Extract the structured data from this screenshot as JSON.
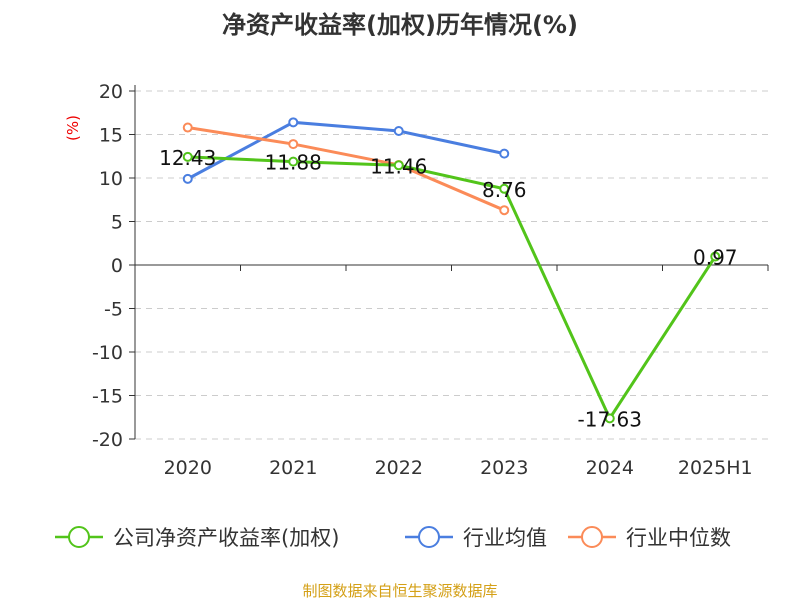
{
  "chart_data": {
    "type": "line",
    "title": "净资产收益率(加权)历年情况(%)",
    "ylabel": "(%)",
    "categories": [
      "2020",
      "2021",
      "2022",
      "2023",
      "2024",
      "2025H1"
    ],
    "ylim": [
      -20,
      20
    ],
    "yticks": [
      "20",
      "15",
      "10",
      "5",
      "0",
      "-5",
      "-10",
      "-15",
      "-20"
    ],
    "grid": true,
    "legend_position": "bottom",
    "series": [
      {
        "name": "公司净资产收益率(加权)",
        "color": "#52c41a",
        "values": [
          12.43,
          11.88,
          11.46,
          8.76,
          -17.63,
          0.97
        ],
        "labels": [
          "12.43",
          "11.88",
          "11.46",
          "8.76",
          "-17.63",
          "0.97"
        ]
      },
      {
        "name": "行业均值",
        "color": "#4a7ee0",
        "values": [
          9.9,
          16.4,
          15.4,
          12.8,
          null,
          null
        ]
      },
      {
        "name": "行业中位数",
        "color": "#fb8b58",
        "values": [
          15.8,
          13.9,
          11.5,
          6.3,
          null,
          null
        ]
      }
    ]
  },
  "footer": {
    "source": "制图数据来自恒生聚源数据库",
    "color": "#d4a017"
  }
}
